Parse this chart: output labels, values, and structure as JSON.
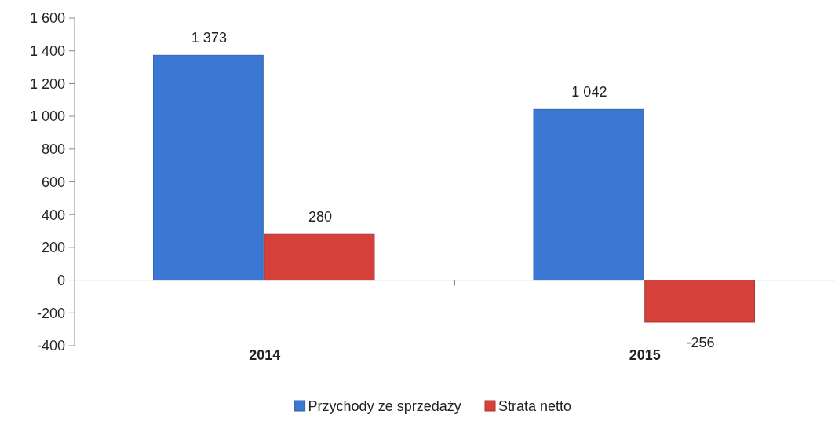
{
  "chart_data": {
    "type": "bar",
    "categories": [
      "2014",
      "2015"
    ],
    "series": [
      {
        "name": "Przychody ze sprzedaży",
        "color": "#3b78d4",
        "values": [
          1373,
          1042
        ],
        "value_labels": [
          "1 373",
          "1 042"
        ]
      },
      {
        "name": "Strata netto",
        "color": "#d6403b",
        "values": [
          280,
          -256
        ],
        "value_labels": [
          "280",
          "-256"
        ]
      }
    ],
    "ylim": [
      -400,
      1600
    ],
    "yticks": [
      {
        "value": -400,
        "label": "-400"
      },
      {
        "value": -200,
        "label": "-200"
      },
      0,
      200,
      400,
      600,
      800,
      {
        "value": 1000,
        "label": "1 000"
      },
      {
        "value": 1200,
        "label": "1 200"
      },
      {
        "value": 1400,
        "label": "1 400"
      },
      {
        "value": 1600,
        "label": "1 600"
      }
    ],
    "legend": "bottom"
  }
}
